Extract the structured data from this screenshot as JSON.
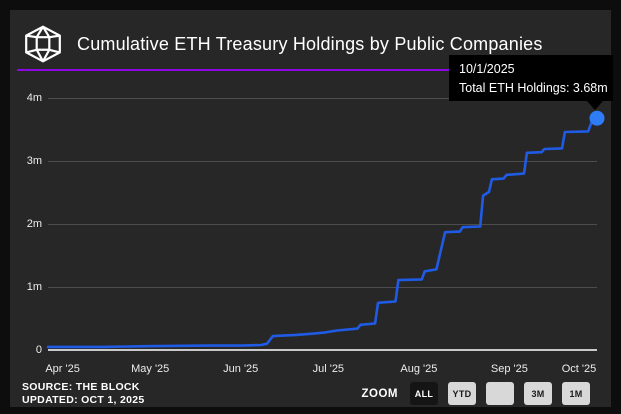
{
  "header": {
    "title": "Cumulative ETH Treasury Holdings by Public Companies",
    "logo": "the-block-logo"
  },
  "chart_data": {
    "type": "line",
    "title": "Cumulative ETH Treasury Holdings by Public Companies",
    "xlabel": "",
    "ylabel": "",
    "unit": "millions of ETH",
    "ylim": [
      0,
      4.3
    ],
    "grid": "horizontal",
    "legend": false,
    "x_range": {
      "start": "2025-03-27",
      "end": "2025-10-01"
    },
    "y_ticks": [
      {
        "label": "4m",
        "value": 4
      },
      {
        "label": "3m",
        "value": 3
      },
      {
        "label": "2m",
        "value": 2
      },
      {
        "label": "1m",
        "value": 1
      },
      {
        "label": "0",
        "value": 0
      }
    ],
    "x_ticks": [
      {
        "label": "Apr '25",
        "date": "2025-04-01"
      },
      {
        "label": "May '25",
        "date": "2025-05-01"
      },
      {
        "label": "Jun '25",
        "date": "2025-06-01"
      },
      {
        "label": "Jul '25",
        "date": "2025-07-01"
      },
      {
        "label": "Aug '25",
        "date": "2025-08-01"
      },
      {
        "label": "Sep '25",
        "date": "2025-09-01"
      },
      {
        "label": "Oct '25",
        "date": "2025-10-01"
      }
    ],
    "series": [
      {
        "name": "Total ETH Holdings",
        "points": [
          {
            "d": "2025-03-27",
            "v": 0.05
          },
          {
            "d": "2025-04-15",
            "v": 0.05
          },
          {
            "d": "2025-04-30",
            "v": 0.06
          },
          {
            "d": "2025-05-20",
            "v": 0.07
          },
          {
            "d": "2025-06-01",
            "v": 0.07
          },
          {
            "d": "2025-06-08",
            "v": 0.08
          },
          {
            "d": "2025-06-10",
            "v": 0.1
          },
          {
            "d": "2025-06-12",
            "v": 0.22
          },
          {
            "d": "2025-06-20",
            "v": 0.24
          },
          {
            "d": "2025-06-26",
            "v": 0.26
          },
          {
            "d": "2025-06-30",
            "v": 0.28
          },
          {
            "d": "2025-07-04",
            "v": 0.31
          },
          {
            "d": "2025-07-11",
            "v": 0.34
          },
          {
            "d": "2025-07-12",
            "v": 0.4
          },
          {
            "d": "2025-07-17",
            "v": 0.42
          },
          {
            "d": "2025-07-18",
            "v": 0.75
          },
          {
            "d": "2025-07-24",
            "v": 0.77
          },
          {
            "d": "2025-07-25",
            "v": 1.11
          },
          {
            "d": "2025-08-02",
            "v": 1.12
          },
          {
            "d": "2025-08-03",
            "v": 1.25
          },
          {
            "d": "2025-08-07",
            "v": 1.28
          },
          {
            "d": "2025-08-10",
            "v": 1.87
          },
          {
            "d": "2025-08-15",
            "v": 1.88
          },
          {
            "d": "2025-08-16",
            "v": 1.95
          },
          {
            "d": "2025-08-22",
            "v": 1.96
          },
          {
            "d": "2025-08-23",
            "v": 2.45
          },
          {
            "d": "2025-08-25",
            "v": 2.51
          },
          {
            "d": "2025-08-26",
            "v": 2.71
          },
          {
            "d": "2025-08-30",
            "v": 2.72
          },
          {
            "d": "2025-08-31",
            "v": 2.78
          },
          {
            "d": "2025-09-06",
            "v": 2.8
          },
          {
            "d": "2025-09-07",
            "v": 3.13
          },
          {
            "d": "2025-09-12",
            "v": 3.14
          },
          {
            "d": "2025-09-13",
            "v": 3.19
          },
          {
            "d": "2025-09-19",
            "v": 3.2
          },
          {
            "d": "2025-09-20",
            "v": 3.46
          },
          {
            "d": "2025-09-28",
            "v": 3.47
          },
          {
            "d": "2025-09-29",
            "v": 3.6
          },
          {
            "d": "2025-10-01",
            "v": 3.68
          }
        ]
      }
    ],
    "highlighted_point": {
      "d": "2025-10-01",
      "v": 3.68
    }
  },
  "tooltip": {
    "date": "10/1/2025",
    "text": "Total ETH Holdings: 3.68m"
  },
  "footer": {
    "source": "SOURCE: THE BLOCK",
    "updated": "UPDATED: OCT 1, 2025",
    "zoom_label": "ZOOM",
    "zoom_buttons": [
      {
        "label": "ALL",
        "selected": true
      },
      {
        "label": "YTD",
        "selected": false
      },
      {
        "label": "",
        "selected": false
      },
      {
        "label": "3M",
        "selected": false
      },
      {
        "label": "1M",
        "selected": false
      }
    ]
  },
  "colors": {
    "page_bg": "#0d0d0d",
    "card_bg": "#272727",
    "accent_purple": "#8f06e4",
    "line_blue": "#1f5be4",
    "dot_blue": "#2e7cf6",
    "grid": "#4d4d4d",
    "baseline": "#c9c9c9",
    "tooltip_bg": "#000000",
    "button_bg": "#d8d8d8",
    "button_selected_bg": "#151515"
  }
}
